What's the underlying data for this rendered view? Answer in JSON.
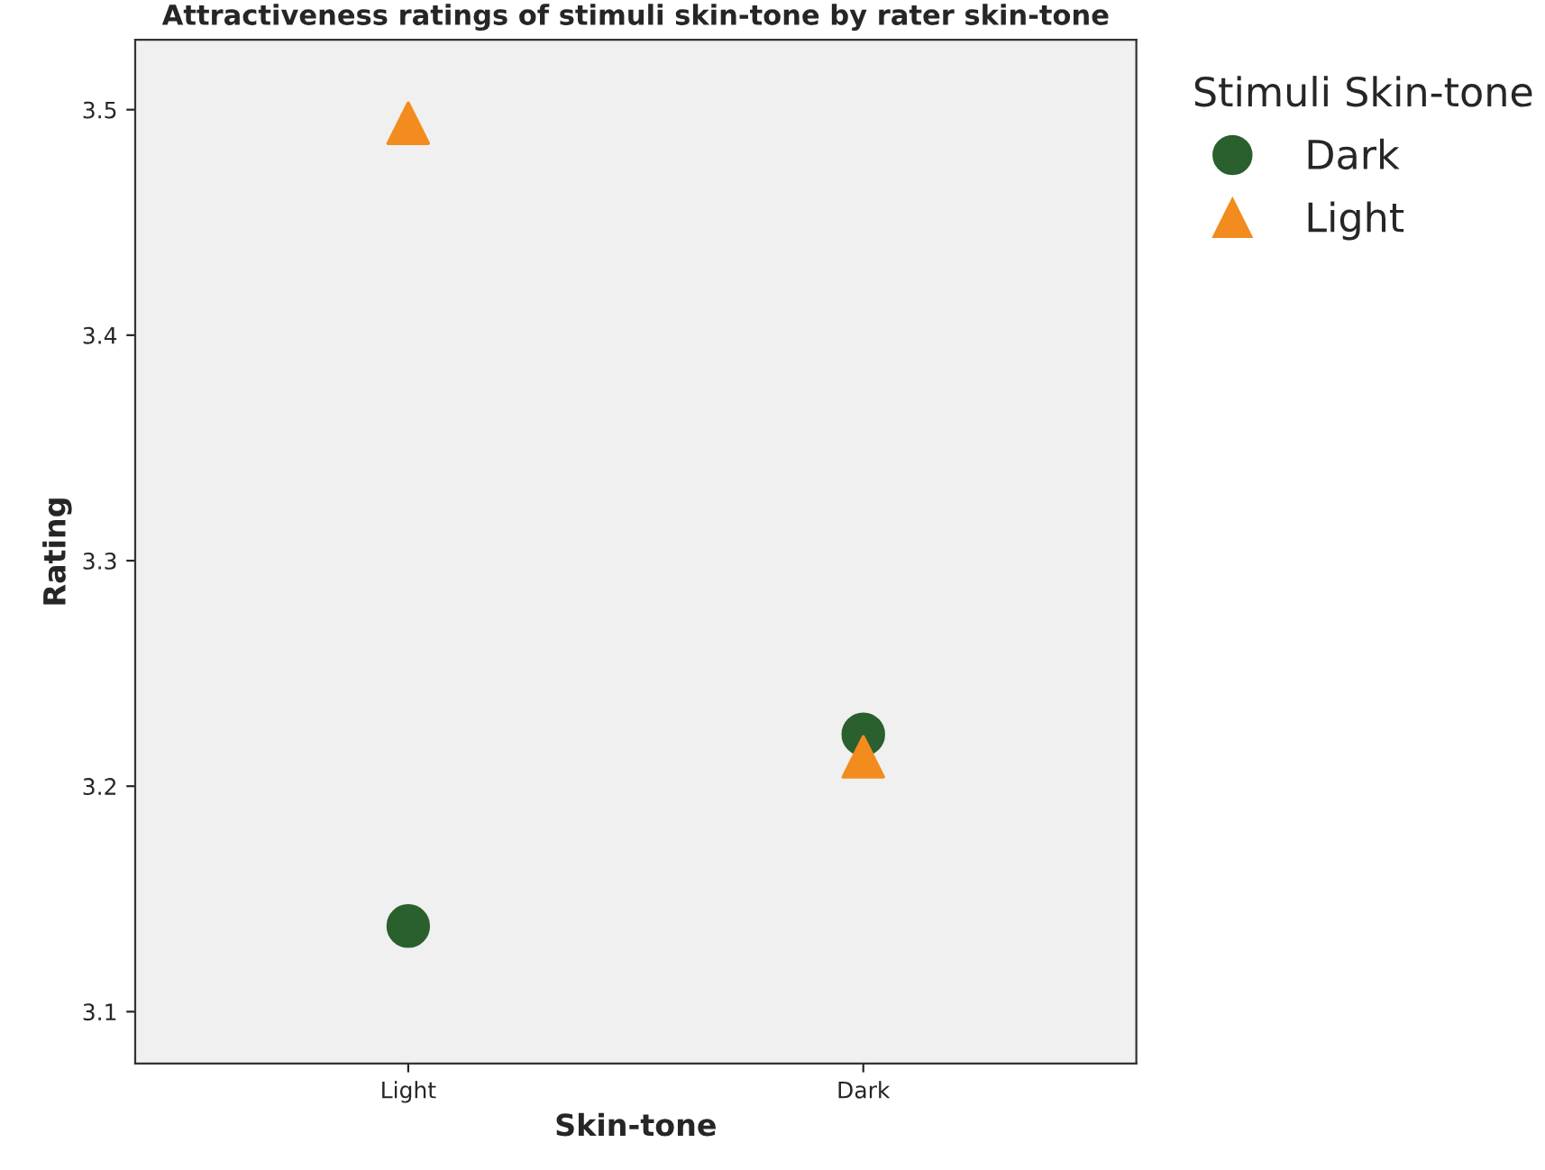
{
  "chart_data": {
    "type": "scatter",
    "title": "Attractiveness ratings of stimuli skin-tone by rater skin-tone",
    "xlabel": "Skin-tone",
    "ylabel": "Rating",
    "legend_title": "Stimuli Skin-tone",
    "categories": [
      "Light",
      "Dark"
    ],
    "series": [
      {
        "name": "Dark",
        "color": "#2a5f2e",
        "marker": "circle",
        "values": [
          3.138,
          3.223
        ]
      },
      {
        "name": "Light",
        "color": "#f28c1e",
        "marker": "triangle",
        "values": [
          3.494,
          3.213
        ]
      }
    ],
    "ylim": [
      3.077,
      3.531
    ],
    "yticks": [
      3.1,
      3.2,
      3.3,
      3.4,
      3.5
    ],
    "grid": false,
    "legend": "top right"
  }
}
